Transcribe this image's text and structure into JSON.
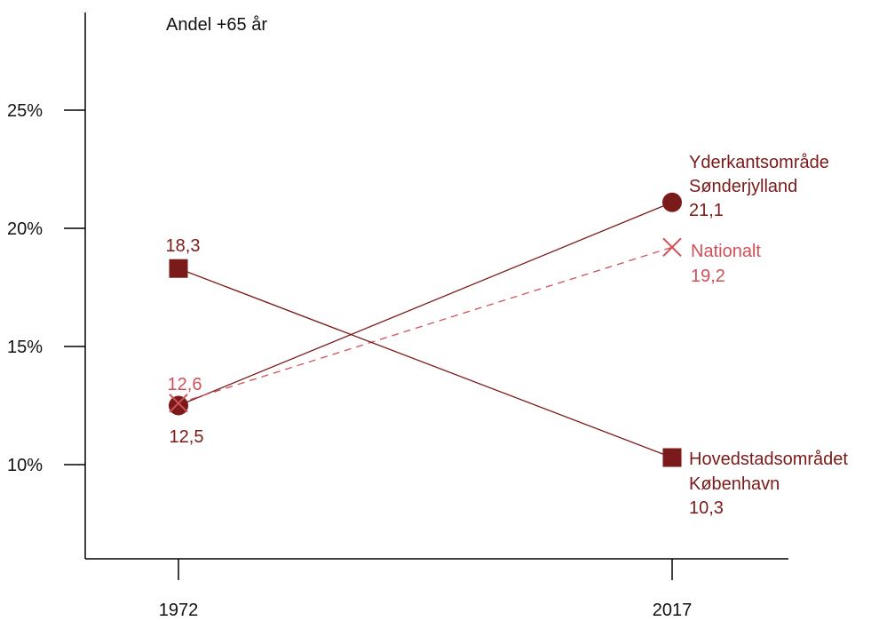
{
  "chart_data": {
    "type": "line",
    "title": "Andel +65 år",
    "xlabel": "",
    "ylabel": "",
    "x": [
      "1972",
      "2017"
    ],
    "y_ticks": [
      "10%",
      "15%",
      "20%",
      "25%"
    ],
    "ylim": [
      6,
      29.5
    ],
    "grid": false,
    "legend": "none",
    "series": [
      {
        "key": "yderkant",
        "name_lines": [
          "Yderkantsområde",
          "Sønderjylland"
        ],
        "values": [
          12.5,
          21.1
        ],
        "value_labels": [
          "12,5",
          "21,1"
        ],
        "marker": "circle",
        "line_style": "solid",
        "color": "#7a1a1a"
      },
      {
        "key": "nationalt",
        "name_lines": [
          "Nationalt"
        ],
        "values": [
          12.6,
          19.2
        ],
        "value_labels": [
          "12,6",
          "19,2"
        ],
        "marker": "x",
        "line_style": "dashed",
        "color": "#d0505a"
      },
      {
        "key": "hovedstad",
        "name_lines": [
          "Hovedstadsområdet",
          "København"
        ],
        "values": [
          18.3,
          10.3
        ],
        "value_labels": [
          "18,3",
          "10,3"
        ],
        "marker": "square",
        "line_style": "solid",
        "color": "#7a1a1a"
      }
    ]
  }
}
